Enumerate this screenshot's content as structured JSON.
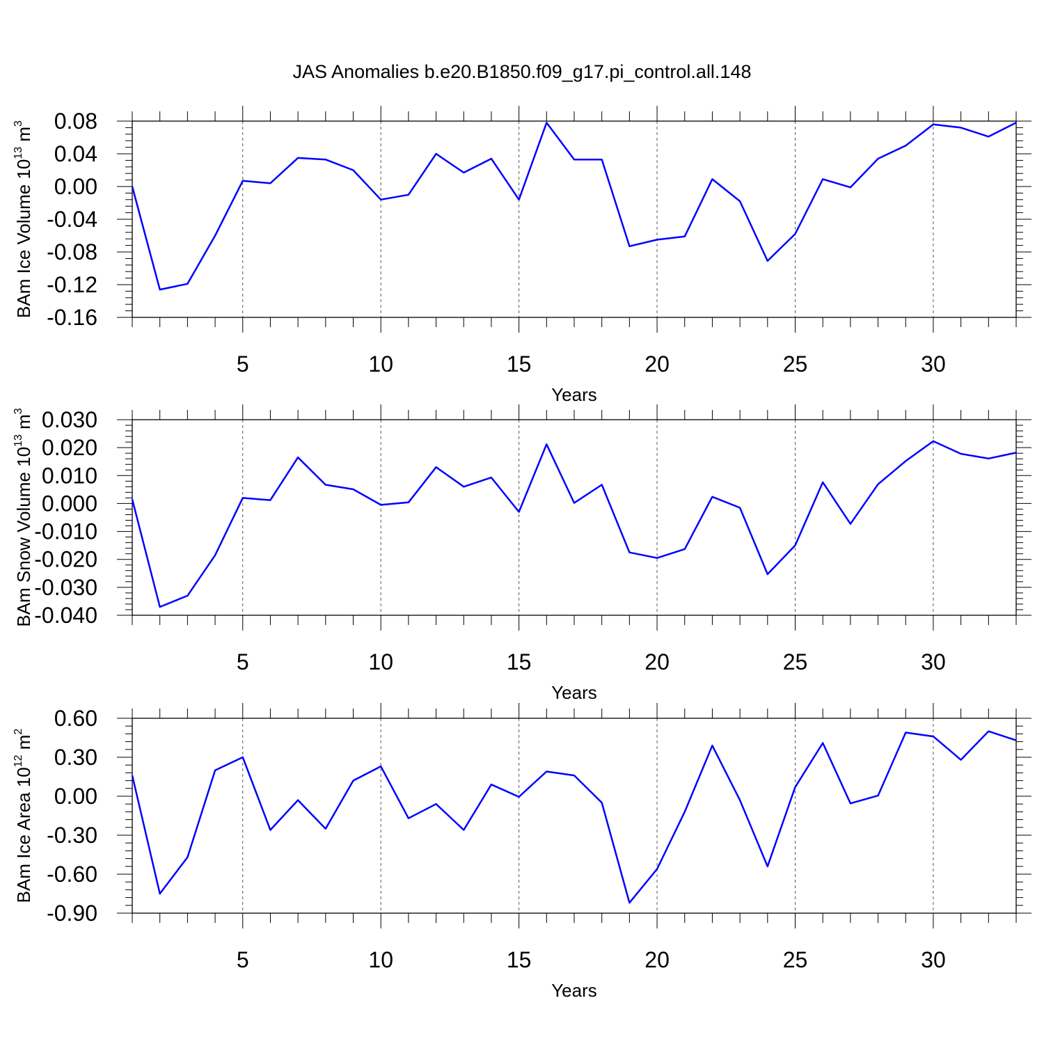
{
  "title": "JAS Anomalies b.e20.B1850.f09_g17.pi_control.all.148",
  "chart_data": [
    {
      "type": "line",
      "ylabel": {
        "base": "BAm Ice Volume 10",
        "exp": "13",
        "unit": " m",
        "unit_exp": "3"
      },
      "xlabel": "Years",
      "xlim": [
        1,
        33
      ],
      "ylim": [
        -0.16,
        0.08
      ],
      "yticks": [
        "0.08",
        "0.04",
        "0.00",
        "-0.04",
        "-0.08",
        "-0.12",
        "-0.16"
      ],
      "ytick_values": [
        0.08,
        0.04,
        0.0,
        -0.04,
        -0.08,
        -0.12,
        -0.16
      ],
      "xticks": [
        "5",
        "10",
        "15",
        "20",
        "25",
        "30"
      ],
      "xtick_values": [
        5,
        10,
        15,
        20,
        25,
        30
      ],
      "color": "#0000ff",
      "x": [
        1,
        2,
        3,
        4,
        5,
        6,
        7,
        8,
        9,
        10,
        11,
        12,
        13,
        14,
        15,
        16,
        17,
        18,
        19,
        20,
        21,
        22,
        23,
        24,
        25,
        26,
        27,
        28,
        29,
        30,
        31,
        32,
        33
      ],
      "values": [
        0.0,
        -0.126,
        -0.119,
        -0.06,
        0.007,
        0.004,
        0.035,
        0.033,
        0.02,
        -0.016,
        -0.01,
        0.04,
        0.017,
        0.034,
        -0.016,
        0.078,
        0.033,
        0.033,
        -0.073,
        -0.065,
        -0.061,
        0.009,
        -0.018,
        -0.091,
        -0.058,
        0.009,
        -0.001,
        0.034,
        0.05,
        0.076,
        0.072,
        0.061,
        0.078
      ]
    },
    {
      "type": "line",
      "ylabel": {
        "base": "BAm Snow Volume 10",
        "exp": "13",
        "unit": " m",
        "unit_exp": "3"
      },
      "xlabel": "Years",
      "xlim": [
        1,
        33
      ],
      "ylim": [
        -0.04,
        0.03
      ],
      "yticks": [
        "0.030",
        "0.020",
        "0.010",
        "0.000",
        "-0.010",
        "-0.020",
        "-0.030",
        "-0.040"
      ],
      "ytick_values": [
        0.03,
        0.02,
        0.01,
        0.0,
        -0.01,
        -0.02,
        -0.03,
        -0.04
      ],
      "xticks": [
        "5",
        "10",
        "15",
        "20",
        "25",
        "30"
      ],
      "xtick_values": [
        5,
        10,
        15,
        20,
        25,
        30
      ],
      "color": "#0000ff",
      "x": [
        1,
        2,
        3,
        4,
        5,
        6,
        7,
        8,
        9,
        10,
        11,
        12,
        13,
        14,
        15,
        16,
        17,
        18,
        19,
        20,
        21,
        22,
        23,
        24,
        25,
        26,
        27,
        28,
        29,
        30,
        31,
        32,
        33
      ],
      "values": [
        0.0015,
        -0.037,
        -0.033,
        -0.0185,
        0.002,
        0.0012,
        0.0165,
        0.0067,
        0.0051,
        -0.0005,
        0.0004,
        0.013,
        0.006,
        0.0093,
        -0.003,
        0.0212,
        0.0002,
        0.0067,
        -0.0175,
        -0.0195,
        -0.0163,
        0.0024,
        -0.0015,
        -0.0253,
        -0.015,
        0.0076,
        -0.0073,
        0.0069,
        0.0152,
        0.0223,
        0.0178,
        0.0161,
        0.0182
      ]
    },
    {
      "type": "line",
      "ylabel": {
        "base": "BAm Ice Area 10",
        "exp": "12",
        "unit": " m",
        "unit_exp": "2"
      },
      "xlabel": "Years",
      "xlim": [
        1,
        33
      ],
      "ylim": [
        -0.9,
        0.6
      ],
      "yticks": [
        "0.60",
        "0.30",
        "0.00",
        "-0.30",
        "-0.60",
        "-0.90"
      ],
      "ytick_values": [
        0.6,
        0.3,
        0.0,
        -0.3,
        -0.6,
        -0.9
      ],
      "xticks": [
        "5",
        "10",
        "15",
        "20",
        "25",
        "30"
      ],
      "xtick_values": [
        5,
        10,
        15,
        20,
        25,
        30
      ],
      "color": "#0000ff",
      "x": [
        1,
        2,
        3,
        4,
        5,
        6,
        7,
        8,
        9,
        10,
        11,
        12,
        13,
        14,
        15,
        16,
        17,
        18,
        19,
        20,
        21,
        22,
        23,
        24,
        25,
        26,
        27,
        28,
        29,
        30,
        31,
        32,
        33
      ],
      "values": [
        0.16,
        -0.75,
        -0.47,
        0.2,
        0.3,
        -0.26,
        -0.03,
        -0.25,
        0.12,
        0.23,
        -0.17,
        -0.06,
        -0.26,
        0.09,
        -0.005,
        0.19,
        0.16,
        -0.05,
        -0.82,
        -0.56,
        -0.12,
        0.39,
        -0.03,
        -0.54,
        0.07,
        0.41,
        -0.055,
        0.005,
        0.49,
        0.46,
        0.28,
        0.5,
        0.43
      ]
    }
  ]
}
